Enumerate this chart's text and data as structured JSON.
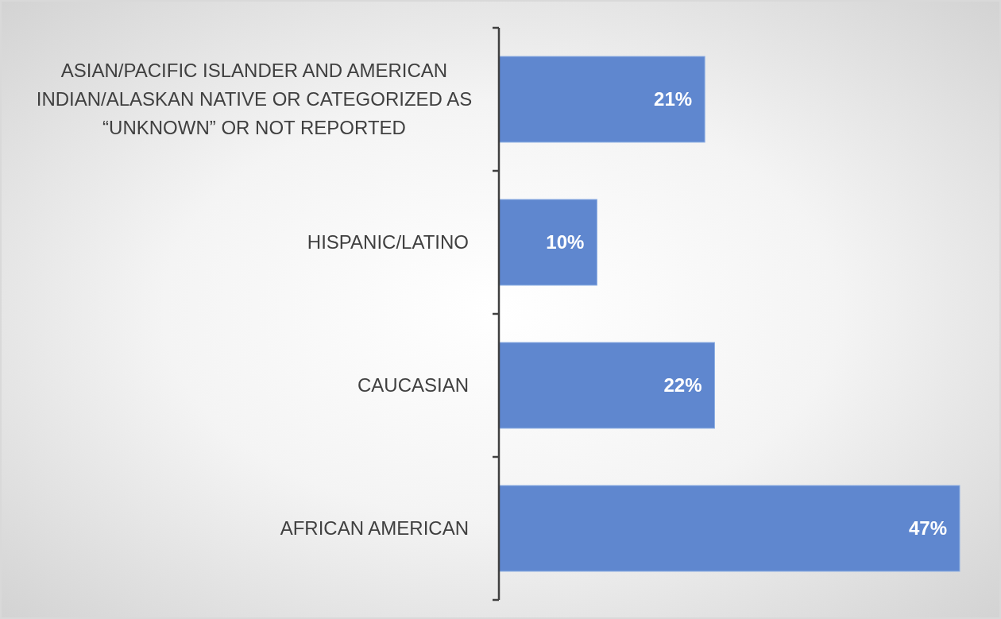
{
  "chart_data": {
    "type": "bar",
    "orientation": "horizontal",
    "categories": [
      "ASIAN/PACIFIC ISLANDER AND AMERICAN INDIAN/ALASKAN NATIVE OR CATEGORIZED AS “UNKNOWN” OR NOT REPORTED",
      "HISPANIC/LATINO",
      "CAUCASIAN",
      "AFRICAN AMERICAN"
    ],
    "values": [
      21,
      10,
      22,
      47
    ],
    "color": "#5f87cf",
    "value_labels": [
      "21%",
      "10%",
      "22%",
      "47%"
    ]
  }
}
